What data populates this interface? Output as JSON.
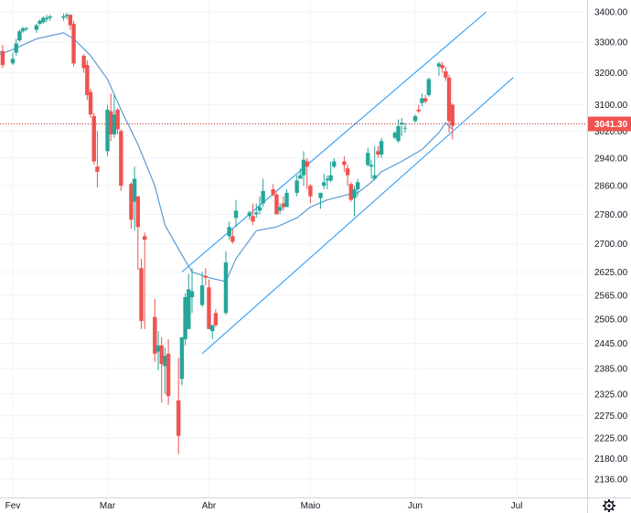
{
  "chart_data": {
    "type": "candlestick",
    "title": "",
    "xlabel": "",
    "ylabel": "",
    "colors": {
      "up": "#26a69a",
      "down": "#ef5350",
      "ma_line": "#5b9bd5",
      "channel": "#2196f3",
      "last_price_line": "#c62828",
      "last_price_label_bg": "#ef5350",
      "grid": "#f0f3fa",
      "axis_text": "#131722"
    },
    "x_axis": {
      "labels": [
        "Fev",
        "Mar",
        "Abr",
        "Maio",
        "Jun",
        "Jul"
      ],
      "label_dates": [
        "2020-02-03",
        "2020-03-02",
        "2020-04-01",
        "2020-05-01",
        "2020-06-01",
        "2020-07-01"
      ]
    },
    "y_axis": {
      "ticks": [
        "3400.00",
        "3300.00",
        "3200.00",
        "3100.00",
        "3020.00",
        "2940.00",
        "2860.00",
        "2780.00",
        "2700.00",
        "2625.00",
        "2565.00",
        "2505.00",
        "2445.00",
        "2385.00",
        "2325.00",
        "2275.00",
        "2225.00",
        "2180.00",
        "2136.00"
      ],
      "scale": "log",
      "range": [
        2100,
        3420
      ]
    },
    "last_price": {
      "value": 3041.3,
      "label": "3041.30"
    },
    "series": [
      {
        "kind": "ohlc",
        "x": [
          "2020-01-29",
          "2020-01-30",
          "2020-01-31",
          "2020-02-03",
          "2020-02-04",
          "2020-02-05",
          "2020-02-06",
          "2020-02-07",
          "2020-02-10",
          "2020-02-11",
          "2020-02-12",
          "2020-02-13",
          "2020-02-14",
          "2020-02-18",
          "2020-02-19",
          "2020-02-20",
          "2020-02-21",
          "2020-02-24",
          "2020-02-25",
          "2020-02-26",
          "2020-02-27",
          "2020-02-28",
          "2020-03-02",
          "2020-03-03",
          "2020-03-04",
          "2020-03-05",
          "2020-03-06",
          "2020-03-09",
          "2020-03-10",
          "2020-03-11",
          "2020-03-12",
          "2020-03-13",
          "2020-03-16",
          "2020-03-17",
          "2020-03-18",
          "2020-03-19",
          "2020-03-20",
          "2020-03-23",
          "2020-03-24",
          "2020-03-25",
          "2020-03-26",
          "2020-03-27",
          "2020-03-30",
          "2020-03-31",
          "2020-04-01",
          "2020-04-02",
          "2020-04-03",
          "2020-04-06",
          "2020-04-07",
          "2020-04-08",
          "2020-04-09",
          "2020-04-13",
          "2020-04-14",
          "2020-04-15",
          "2020-04-16",
          "2020-04-17",
          "2020-04-20",
          "2020-04-21",
          "2020-04-22",
          "2020-04-23",
          "2020-04-24",
          "2020-04-27",
          "2020-04-28",
          "2020-04-29",
          "2020-04-30",
          "2020-05-01",
          "2020-05-04",
          "2020-05-05",
          "2020-05-06",
          "2020-05-07",
          "2020-05-08",
          "2020-05-11",
          "2020-05-12",
          "2020-05-13",
          "2020-05-14",
          "2020-05-15",
          "2020-05-18",
          "2020-05-19",
          "2020-05-20",
          "2020-05-21",
          "2020-05-22",
          "2020-05-26",
          "2020-05-27",
          "2020-05-28",
          "2020-05-29",
          "2020-06-01",
          "2020-06-02",
          "2020-06-03",
          "2020-06-04",
          "2020-06-05",
          "2020-06-08",
          "2020-06-09",
          "2020-06-10",
          "2020-06-11",
          "2020-06-12"
        ],
        "open": [
          3280,
          3270,
          3270,
          3230,
          3265,
          3305,
          3335,
          3345,
          3340,
          3360,
          3365,
          3375,
          3380,
          3380,
          3385,
          3390,
          3360,
          3255,
          3225,
          3140,
          3065,
          2915,
          2960,
          3080,
          3010,
          3085,
          3020,
          2865,
          2815,
          2830,
          2635,
          2720,
          2510,
          2425,
          2440,
          2390,
          2420,
          2310,
          2360,
          2455,
          2480,
          2560,
          2540,
          2615,
          2585,
          2475,
          2520,
          2520,
          2720,
          2720,
          2770,
          2775,
          2775,
          2780,
          2790,
          2810,
          2850,
          2835,
          2790,
          2810,
          2800,
          2840,
          2880,
          2890,
          2930,
          2860,
          2825,
          2860,
          2875,
          2875,
          2915,
          2930,
          2910,
          2865,
          2825,
          2850,
          2920,
          2915,
          2880,
          2960,
          2950,
          3000,
          2990,
          3040,
          3030,
          3050,
          3085,
          3105,
          3120,
          3130,
          3220,
          3225,
          3205,
          3185,
          3100
        ],
        "high": [
          3290,
          3290,
          3290,
          3265,
          3310,
          3340,
          3350,
          3350,
          3360,
          3375,
          3385,
          3390,
          3390,
          3395,
          3397,
          3393,
          3370,
          3260,
          3240,
          3150,
          3075,
          3020,
          3100,
          3135,
          3135,
          3090,
          3025,
          2870,
          2915,
          2830,
          2660,
          2730,
          2555,
          2475,
          2460,
          2435,
          2455,
          2410,
          2450,
          2570,
          2620,
          2635,
          2625,
          2635,
          2605,
          2480,
          2530,
          2680,
          2760,
          2740,
          2820,
          2790,
          2810,
          2810,
          2830,
          2880,
          2865,
          2840,
          2810,
          2830,
          2850,
          2890,
          2910,
          2960,
          2940,
          2865,
          2840,
          2895,
          2890,
          2930,
          2940,
          2945,
          2920,
          2870,
          2860,
          2880,
          2970,
          2935,
          2975,
          2975,
          3000,
          3020,
          3055,
          3060,
          3045,
          3070,
          3100,
          3135,
          3130,
          3185,
          3235,
          3235,
          3220,
          3195,
          3105
        ],
        "low": [
          3260,
          3250,
          3215,
          3225,
          3255,
          3300,
          3330,
          3335,
          3330,
          3355,
          3360,
          3365,
          3370,
          3370,
          3375,
          3340,
          3220,
          3200,
          3115,
          3060,
          2920,
          2855,
          2945,
          2990,
          3000,
          3010,
          2845,
          2740,
          2735,
          2630,
          2480,
          2480,
          2400,
          2380,
          2305,
          2325,
          2300,
          2190,
          2345,
          2440,
          2480,
          2520,
          2535,
          2590,
          2480,
          2455,
          2485,
          2515,
          2710,
          2700,
          2745,
          2765,
          2750,
          2770,
          2780,
          2800,
          2830,
          2780,
          2780,
          2790,
          2800,
          2830,
          2880,
          2860,
          2850,
          2810,
          2795,
          2850,
          2850,
          2870,
          2910,
          2900,
          2860,
          2815,
          2775,
          2830,
          2915,
          2880,
          2875,
          2940,
          2940,
          2995,
          2985,
          3005,
          3015,
          3045,
          3075,
          3095,
          3105,
          3125,
          3190,
          3200,
          3175,
          3015,
          2995
        ],
        "close": [
          3270,
          3270,
          3225,
          3245,
          3295,
          3335,
          3345,
          3345,
          3355,
          3370,
          3380,
          3380,
          3385,
          3385,
          3390,
          3355,
          3230,
          3215,
          3130,
          3070,
          2930,
          2900,
          3085,
          3010,
          3070,
          3025,
          2860,
          2765,
          2880,
          2745,
          2500,
          2710,
          2420,
          2440,
          2395,
          2415,
          2320,
          2230,
          2460,
          2560,
          2580,
          2575,
          2590,
          2610,
          2480,
          2490,
          2490,
          2650,
          2745,
          2705,
          2790,
          2785,
          2760,
          2785,
          2800,
          2845,
          2835,
          2780,
          2800,
          2800,
          2840,
          2875,
          2890,
          2935,
          2915,
          2830,
          2840,
          2870,
          2880,
          2890,
          2930,
          2920,
          2890,
          2820,
          2850,
          2870,
          2955,
          2920,
          2890,
          2950,
          2990,
          3015,
          3035,
          3045,
          3030,
          3065,
          3080,
          3120,
          3110,
          3180,
          3230,
          3215,
          3185,
          3050,
          3035
        ]
      },
      {
        "kind": "ma",
        "x": [
          "2020-01-29",
          "2020-02-03",
          "2020-02-10",
          "2020-02-18",
          "2020-02-21",
          "2020-02-26",
          "2020-03-02",
          "2020-03-06",
          "2020-03-11",
          "2020-03-16",
          "2020-03-19",
          "2020-03-24",
          "2020-03-27",
          "2020-04-01",
          "2020-04-06",
          "2020-04-09",
          "2020-04-15",
          "2020-04-21",
          "2020-04-27",
          "2020-05-01",
          "2020-05-06",
          "2020-05-12",
          "2020-05-15",
          "2020-05-19",
          "2020-05-22",
          "2020-05-28",
          "2020-06-03",
          "2020-06-08",
          "2020-06-10",
          "2020-06-12"
        ],
        "y": [
          3255,
          3275,
          3310,
          3330,
          3310,
          3255,
          3180,
          3085,
          2980,
          2860,
          2750,
          2670,
          2625,
          2610,
          2600,
          2660,
          2735,
          2745,
          2770,
          2800,
          2820,
          2835,
          2840,
          2870,
          2900,
          2930,
          2965,
          3015,
          3045,
          3025
        ]
      },
      {
        "kind": "channel_upper",
        "x": [
          "2020-03-24",
          "2020-06-22"
        ],
        "y": [
          2625,
          3400
        ]
      },
      {
        "kind": "channel_lower",
        "x": [
          "2020-03-30",
          "2020-06-30"
        ],
        "y": [
          2420,
          3185
        ]
      }
    ]
  }
}
